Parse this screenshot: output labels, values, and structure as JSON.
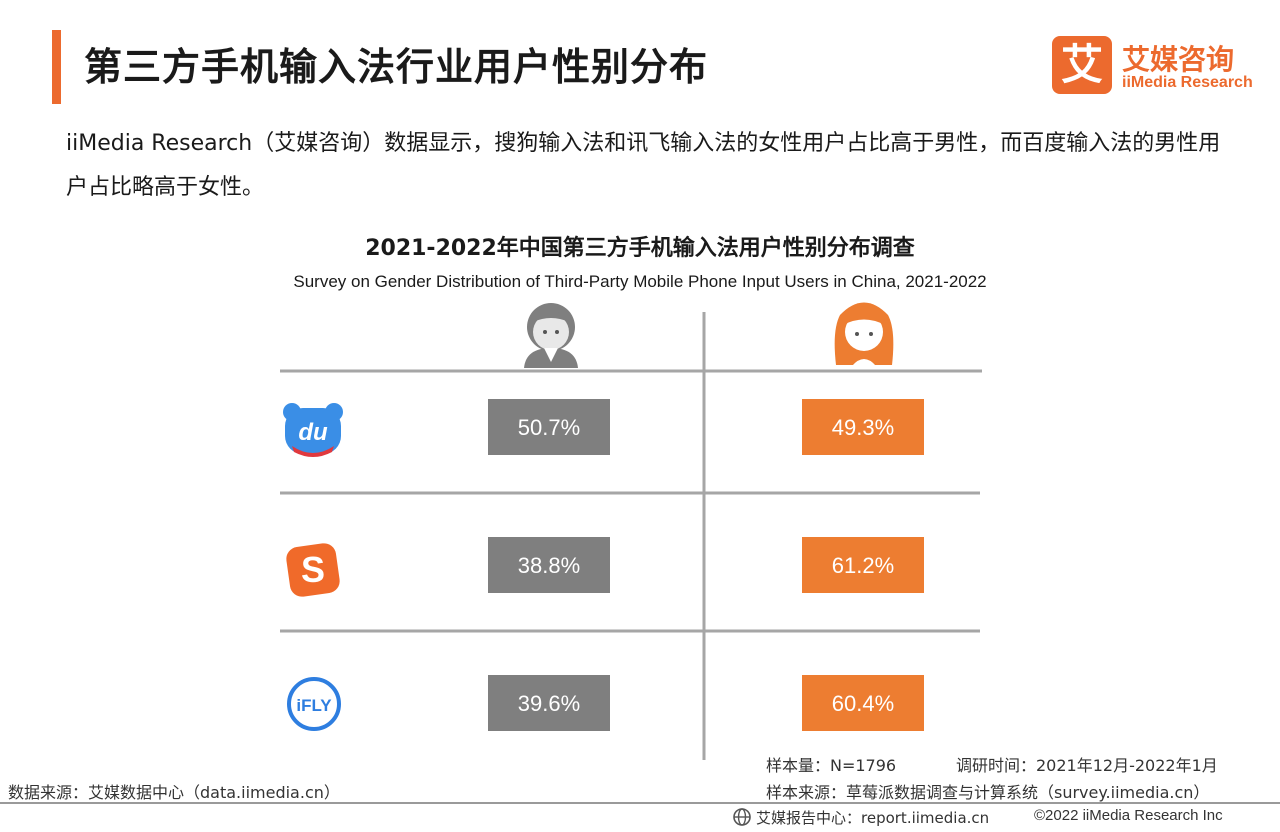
{
  "header": {
    "title": "第三方手机输入法行业用户性别分布",
    "logo_mark": "艾",
    "logo_cn": "艾媒咨询",
    "logo_en": "iiMedia Research"
  },
  "intro": "iiMedia Research（艾媒咨询）数据显示，搜狗输入法和讯飞输入法的女性用户占比高于男性，而百度输入法的男性用户占比略高于女性。",
  "chart_data": {
    "type": "table",
    "title": "2021-2022年中国第三方手机输入法用户性别分布调查",
    "subtitle": "Survey on Gender Distribution of Third-Party Mobile Phone Input Users in China, 2021-2022",
    "columns": [
      "male-icon",
      "female-icon"
    ],
    "rows": [
      {
        "icon": "baidu-input-icon",
        "male": 50.7,
        "female": 49.3,
        "male_label": "50.7%",
        "female_label": "49.3%"
      },
      {
        "icon": "sogou-input-icon",
        "male": 38.8,
        "female": 61.2,
        "male_label": "38.8%",
        "female_label": "61.2%"
      },
      {
        "icon": "iflytek-input-icon",
        "male": 39.6,
        "female": 60.4,
        "male_label": "39.6%",
        "female_label": "60.4%"
      }
    ],
    "colors": {
      "male": "#7f7f7f",
      "female": "#ed7d31"
    }
  },
  "meta": {
    "sample_size": "样本量：N=1796",
    "survey_time": "调研时间：2021年12月-2022年1月",
    "sample_source": "样本来源：草莓派数据调查与计算系统（survey.iimedia.cn）",
    "data_source": "数据来源：艾媒数据中心（data.iimedia.cn）",
    "report_center": "艾媒报告中心：report.iimedia.cn",
    "copyright": "©2022 iiMedia Research Inc"
  }
}
